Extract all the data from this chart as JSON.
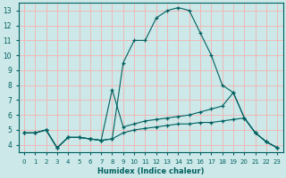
{
  "xlabel": "Humidex (Indice chaleur)",
  "ylabel": "",
  "bg_color": "#cce8e8",
  "grid_color": "#f0b8b8",
  "line_color": "#006060",
  "xlim": [
    -0.5,
    23.5
  ],
  "ylim": [
    3.5,
    13.5
  ],
  "xticks": [
    0,
    1,
    2,
    3,
    4,
    5,
    6,
    7,
    8,
    9,
    10,
    11,
    12,
    13,
    14,
    15,
    16,
    17,
    18,
    19,
    20,
    21,
    22,
    23
  ],
  "yticks": [
    4,
    5,
    6,
    7,
    8,
    9,
    10,
    11,
    12,
    13
  ],
  "line1_x": [
    0,
    1,
    2,
    3,
    4,
    5,
    6,
    7,
    8,
    9,
    10,
    11,
    12,
    13,
    14,
    15,
    16,
    17,
    18,
    19,
    20,
    21,
    22,
    23
  ],
  "line1_y": [
    4.8,
    4.8,
    5.0,
    3.8,
    4.5,
    4.5,
    4.4,
    4.3,
    4.4,
    9.5,
    11.0,
    11.0,
    12.5,
    13.0,
    13.2,
    13.0,
    11.5,
    10.0,
    8.0,
    7.5,
    5.8,
    4.8,
    4.2,
    3.8
  ],
  "line2_x": [
    0,
    1,
    2,
    3,
    4,
    5,
    6,
    7,
    8,
    9,
    10,
    11,
    12,
    13,
    14,
    15,
    16,
    17,
    18,
    19,
    20,
    21,
    22,
    23
  ],
  "line2_y": [
    4.8,
    4.8,
    5.0,
    3.8,
    4.5,
    4.5,
    4.4,
    4.3,
    7.7,
    5.2,
    5.4,
    5.6,
    5.7,
    5.8,
    5.9,
    6.0,
    6.2,
    6.4,
    6.6,
    7.5,
    5.8,
    4.8,
    4.2,
    3.8
  ],
  "line3_x": [
    0,
    1,
    2,
    3,
    4,
    5,
    6,
    7,
    8,
    9,
    10,
    11,
    12,
    13,
    14,
    15,
    16,
    17,
    18,
    19,
    20,
    21,
    22,
    23
  ],
  "line3_y": [
    4.8,
    4.8,
    5.0,
    3.8,
    4.5,
    4.5,
    4.4,
    4.3,
    4.4,
    4.8,
    5.0,
    5.1,
    5.2,
    5.3,
    5.4,
    5.4,
    5.5,
    5.5,
    5.6,
    5.7,
    5.8,
    4.8,
    4.2,
    3.8
  ]
}
